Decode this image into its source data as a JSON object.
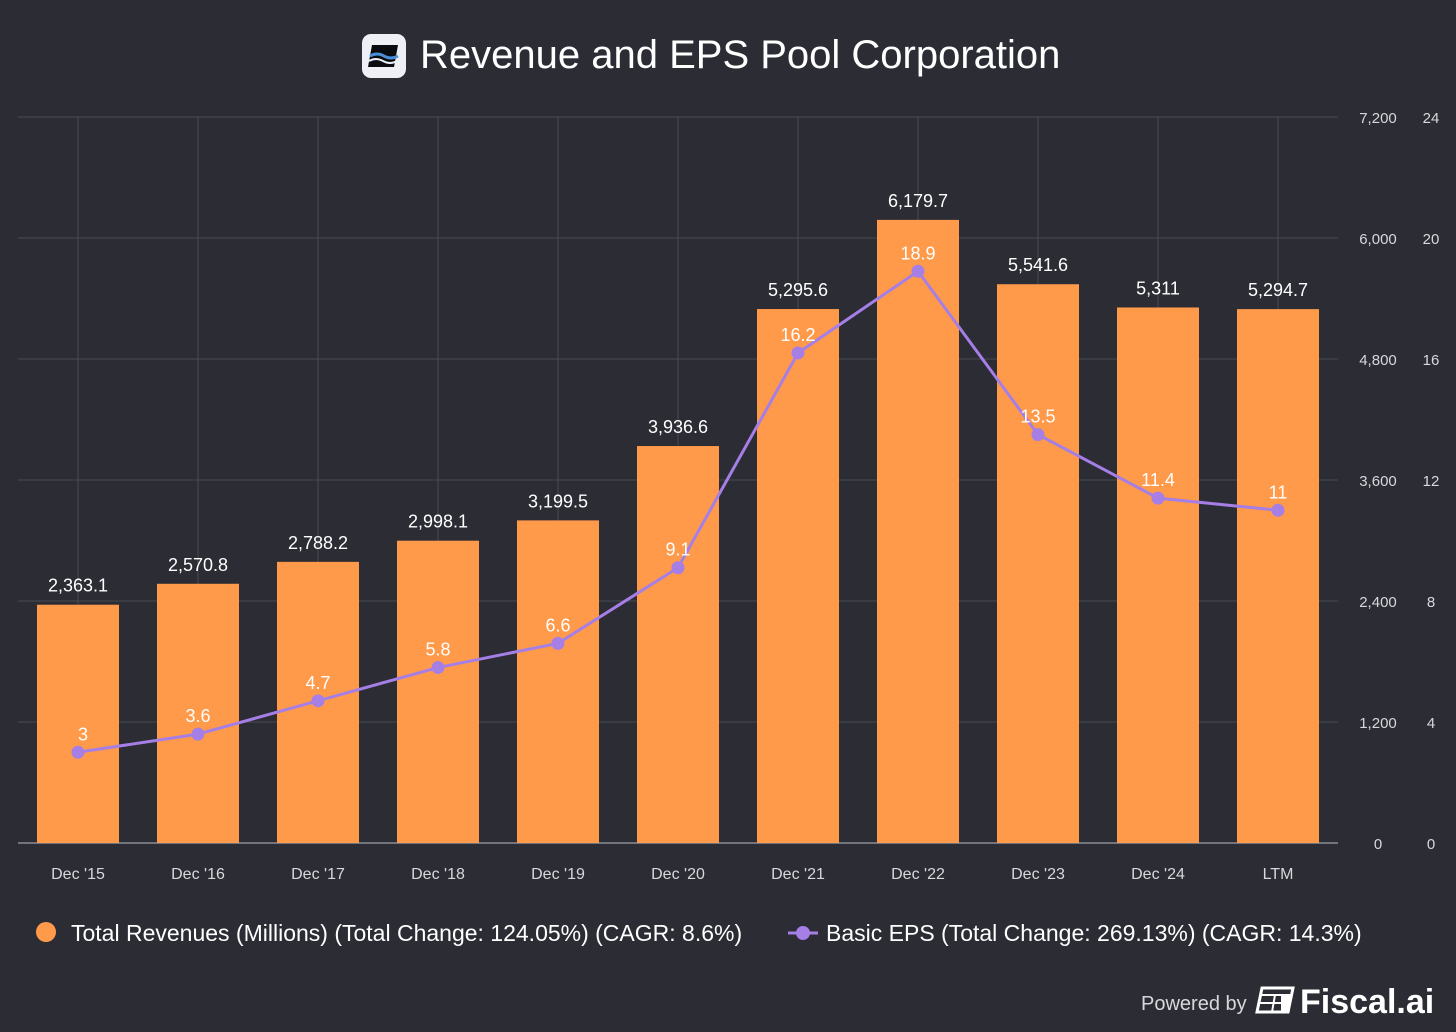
{
  "chart_data": {
    "type": "bar+line",
    "title": "Revenue and EPS Pool Corporation",
    "categories": [
      "Dec '15",
      "Dec '16",
      "Dec '17",
      "Dec '18",
      "Dec '19",
      "Dec '20",
      "Dec '21",
      "Dec '22",
      "Dec '23",
      "Dec '24",
      "LTM"
    ],
    "series": [
      {
        "name": "Total Revenues (Millions) (Total Change: 124.05%) (CAGR: 8.6%)",
        "type": "bar",
        "axis": "right-outer-left",
        "values": [
          2363.1,
          2570.8,
          2788.2,
          2998.1,
          3199.5,
          3936.6,
          5295.6,
          6179.7,
          5541.6,
          5311,
          5294.7
        ],
        "labels": [
          "2,363.1",
          "2,570.8",
          "2,788.2",
          "2,998.1",
          "3,199.5",
          "3,936.6",
          "5,295.6",
          "6,179.7",
          "5,541.6",
          "5,311",
          "5,294.7"
        ],
        "color": "#ff9a4b"
      },
      {
        "name": "Basic EPS (Total Change: 269.13%) (CAGR: 14.3%)",
        "type": "line",
        "values": [
          3,
          3.6,
          4.7,
          5.8,
          6.6,
          9.1,
          16.2,
          18.9,
          13.5,
          11.4,
          11
        ],
        "labels": [
          "3",
          "3.6",
          "4.7",
          "5.8",
          "6.6",
          "9.1",
          "16.2",
          "18.9",
          "13.5",
          "11.4",
          "11"
        ],
        "color": "#a57ee6"
      }
    ],
    "y_revenue": {
      "range": [
        0,
        7200
      ],
      "ticks": [
        "0",
        "1,200",
        "2,400",
        "3,600",
        "4,800",
        "6,000",
        "7,200"
      ]
    },
    "y_eps": {
      "range": [
        0,
        24
      ],
      "ticks": [
        "0",
        "4",
        "8",
        "12",
        "16",
        "20",
        "24"
      ]
    },
    "grid": true,
    "legend": "bottom"
  },
  "footer": {
    "powered_by": "Powered by",
    "brand": "Fiscal.ai"
  },
  "colors": {
    "background": "#2b2c34",
    "grid": "#4a4b55"
  }
}
